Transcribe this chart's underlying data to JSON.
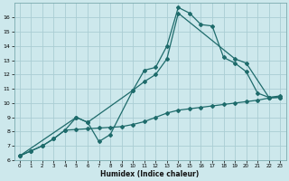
{
  "xlabel": "Humidex (Indice chaleur)",
  "xlim": [
    -0.5,
    23.5
  ],
  "ylim": [
    6,
    17
  ],
  "yticks": [
    6,
    7,
    8,
    9,
    10,
    11,
    12,
    13,
    14,
    15,
    16
  ],
  "xticks": [
    0,
    1,
    2,
    3,
    4,
    5,
    6,
    7,
    8,
    9,
    10,
    11,
    12,
    13,
    14,
    15,
    16,
    17,
    18,
    19,
    20,
    21,
    22,
    23
  ],
  "background_color": "#cde8ec",
  "grid_color": "#aacdd3",
  "line_color": "#1e6b6b",
  "lines": [
    {
      "x": [
        0,
        1,
        2,
        3,
        4,
        5,
        6,
        7,
        8,
        9,
        10,
        11,
        12,
        13,
        14,
        15,
        16,
        17,
        18,
        19,
        20,
        21,
        22,
        23
      ],
      "y": [
        6.3,
        6.65,
        7.0,
        7.5,
        8.1,
        8.15,
        8.2,
        8.25,
        8.3,
        8.35,
        8.5,
        8.7,
        9.0,
        9.3,
        9.5,
        9.6,
        9.7,
        9.8,
        9.9,
        10.0,
        10.1,
        10.2,
        10.35,
        10.4
      ]
    },
    {
      "x": [
        0,
        1,
        2,
        3,
        4,
        5,
        6,
        7,
        8,
        10,
        11,
        12,
        13,
        14,
        15,
        16,
        17,
        18,
        19,
        20,
        21,
        22,
        23
      ],
      "y": [
        6.3,
        6.65,
        7.0,
        7.5,
        8.1,
        9.0,
        8.65,
        7.3,
        7.8,
        10.9,
        12.3,
        12.5,
        14.0,
        16.7,
        16.3,
        15.5,
        15.4,
        13.2,
        12.8,
        12.2,
        10.7,
        10.4,
        10.4
      ]
    },
    {
      "x": [
        0,
        5,
        6,
        10,
        11,
        12,
        13,
        14,
        19,
        20,
        22,
        23
      ],
      "y": [
        6.3,
        9.0,
        8.65,
        10.9,
        11.5,
        12.0,
        13.1,
        16.3,
        13.1,
        12.8,
        10.4,
        10.5
      ]
    }
  ]
}
